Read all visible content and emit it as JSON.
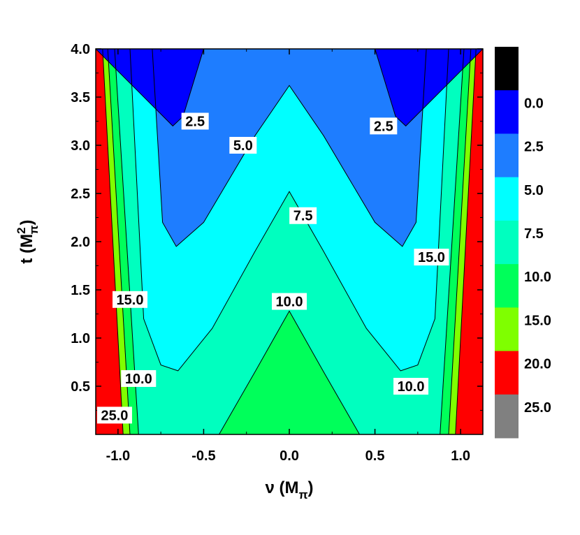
{
  "chart_data": {
    "type": "heatmap",
    "subtype": "filled-contour",
    "title": "",
    "xlabel": "ν  (M",
    "xlabel_sub": "π",
    "xlabel_close": ")",
    "ylabel": "t  (M",
    "ylabel_sup": "2",
    "ylabel_sub": "π",
    "ylabel_close": ")",
    "xlim": [
      -1.13,
      1.13
    ],
    "ylim": [
      0.0,
      4.0
    ],
    "x_ticks": [
      -1.0,
      -0.5,
      0.0,
      0.5,
      1.0
    ],
    "x_tick_labels": [
      "-1.0",
      "-0.5",
      "0.0",
      "0.5",
      "1.0"
    ],
    "y_ticks": [
      0.5,
      1.0,
      1.5,
      2.0,
      2.5,
      3.0,
      3.5,
      4.0
    ],
    "y_tick_labels": [
      "0.5",
      "1.0",
      "1.5",
      "2.0",
      "2.5",
      "3.0",
      "3.5",
      "4.0"
    ],
    "levels": [
      0.0,
      2.5,
      5.0,
      7.5,
      10.0,
      15.0,
      20.0,
      25.0
    ],
    "colorbar": {
      "placement": "right",
      "bands": [
        {
          "color": "#000000",
          "label": ""
        },
        {
          "color": "#0000ff",
          "label": "0.0"
        },
        {
          "color": "#1e7dff",
          "label": "2.5"
        },
        {
          "color": "#00ffff",
          "label": "5.0"
        },
        {
          "color": "#00ffbf",
          "label": "7.5"
        },
        {
          "color": "#00ff5a",
          "label": "10.0"
        },
        {
          "color": "#7fff00",
          "label": "15.0"
        },
        {
          "color": "#ff0000",
          "label": "20.0"
        },
        {
          "color": "#808080",
          "label": "25.0"
        }
      ]
    },
    "region_colors": {
      "band_2_5": "#0000ff",
      "band_5_0": "#1e7dff",
      "band_7_5": "#00ffff",
      "band_10_0": "#00ffbf",
      "band_15_0": "#00ff5a",
      "edge_green": "#7fff00",
      "edge_red": "#ff0000"
    },
    "contour_lines": {
      "c2_5": [
        [
          -1.13,
          4.0
        ],
        [
          -0.68,
          3.2
        ],
        [
          -0.62,
          3.3
        ],
        [
          -0.5,
          4.0
        ]
      ],
      "c2_5_right": [
        [
          0.5,
          4.0
        ],
        [
          0.62,
          3.3
        ],
        [
          0.68,
          3.2
        ],
        [
          1.13,
          4.0
        ]
      ],
      "c5_0": [
        [
          -0.8,
          4.0
        ],
        [
          -0.74,
          2.2
        ],
        [
          -0.66,
          1.95
        ],
        [
          -0.5,
          2.2
        ],
        [
          -0.2,
          3.1
        ],
        [
          0.0,
          3.62
        ],
        [
          0.2,
          3.1
        ],
        [
          0.5,
          2.2
        ],
        [
          0.66,
          1.95
        ],
        [
          0.74,
          2.2
        ],
        [
          0.8,
          4.0
        ]
      ],
      "c7_5": [
        [
          -0.93,
          4.0
        ],
        [
          -0.85,
          1.2
        ],
        [
          -0.75,
          0.72
        ],
        [
          -0.65,
          0.66
        ],
        [
          -0.45,
          1.1
        ],
        [
          -0.2,
          1.9
        ],
        [
          0.0,
          2.52
        ],
        [
          0.2,
          1.9
        ],
        [
          0.45,
          1.1
        ],
        [
          0.65,
          0.66
        ],
        [
          0.75,
          0.72
        ],
        [
          0.85,
          1.2
        ],
        [
          0.93,
          4.0
        ]
      ],
      "c10_0": [
        [
          -0.41,
          0.0
        ],
        [
          -0.2,
          0.65
        ],
        [
          0.0,
          1.28
        ],
        [
          0.2,
          0.65
        ],
        [
          0.41,
          0.0
        ]
      ],
      "c15_left": [
        [
          -1.02,
          4.0
        ],
        [
          -0.88,
          0.0
        ]
      ],
      "c15_right": [
        [
          0.88,
          0.0
        ],
        [
          1.02,
          4.0
        ]
      ],
      "c20_left": [
        [
          -1.06,
          4.0
        ],
        [
          -0.93,
          0.0
        ]
      ],
      "c20_right": [
        [
          0.93,
          0.0
        ],
        [
          1.06,
          4.0
        ]
      ],
      "c25_left": [
        [
          -1.09,
          4.0
        ],
        [
          -0.97,
          0.0
        ]
      ],
      "c25_right": [
        [
          0.97,
          0.0
        ],
        [
          1.09,
          4.0
        ]
      ]
    },
    "annotations": [
      {
        "text": "2.5",
        "x": -0.55,
        "y": 3.25
      },
      {
        "text": "2.5",
        "x": 0.55,
        "y": 3.2
      },
      {
        "text": "5.0",
        "x": -0.27,
        "y": 3.0
      },
      {
        "text": "7.5",
        "x": 0.08,
        "y": 2.27
      },
      {
        "text": "10.0",
        "x": 0.0,
        "y": 1.38
      },
      {
        "text": "15.0",
        "x": 0.83,
        "y": 1.84
      },
      {
        "text": "15.0",
        "x": -0.93,
        "y": 1.4
      },
      {
        "text": "10.0",
        "x": -0.88,
        "y": 0.58
      },
      {
        "text": "10.0",
        "x": 0.71,
        "y": 0.5
      },
      {
        "text": "25.0",
        "x": -1.02,
        "y": 0.2
      }
    ]
  }
}
